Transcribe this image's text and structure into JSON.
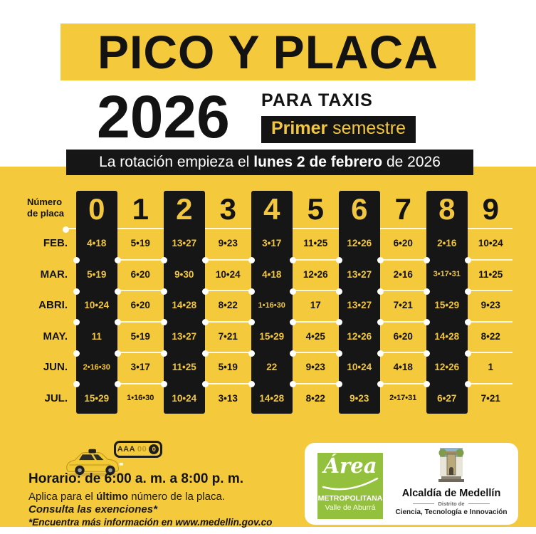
{
  "header": {
    "title": "PICO Y PLACA",
    "year": "2026",
    "subtitle": "PARA TAXIS",
    "semester_highlight": "Primer",
    "semester_rest": " semestre",
    "rotation_prefix": "La rotación empieza el ",
    "rotation_bold": "lunes 2 de febrero",
    "rotation_suffix": " de 2026"
  },
  "table": {
    "corner_label_line1": "Número",
    "corner_label_line2": "de placa",
    "columns": [
      "0",
      "1",
      "2",
      "3",
      "4",
      "5",
      "6",
      "7",
      "8",
      "9"
    ],
    "rows": [
      {
        "month": "FEB.",
        "values": [
          "4•18",
          "5•19",
          "13•27",
          "9•23",
          "3•17",
          "11•25",
          "12•26",
          "6•20",
          "2•16",
          "10•24"
        ]
      },
      {
        "month": "MAR.",
        "values": [
          "5•19",
          "6•20",
          "9•30",
          "10•24",
          "4•18",
          "12•26",
          "13•27",
          "2•16",
          "3•17•31",
          "11•25"
        ]
      },
      {
        "month": "ABRI.",
        "values": [
          "10•24",
          "6•20",
          "14•28",
          "8•22",
          "1•16•30",
          "17",
          "13•27",
          "7•21",
          "15•29",
          "9•23"
        ]
      },
      {
        "month": "MAY.",
        "values": [
          "11",
          "5•19",
          "13•27",
          "7•21",
          "15•29",
          "4•25",
          "12•26",
          "6•20",
          "14•28",
          "8•22"
        ]
      },
      {
        "month": "JUN.",
        "values": [
          "2•16•30",
          "3•17",
          "11•25",
          "5•19",
          "22",
          "9•23",
          "10•24",
          "4•18",
          "12•26",
          "1"
        ]
      },
      {
        "month": "JUL.",
        "values": [
          "15•29",
          "1•16•30",
          "10•24",
          "3•13",
          "14•28",
          "8•22",
          "9•23",
          "2•17•31",
          "6•27",
          "7•21"
        ]
      }
    ]
  },
  "footer": {
    "plate_letters": "AAA",
    "plate_faint": "00",
    "plate_circle_digit": "0",
    "schedule": "Horario: de 6:00 a. m. a 8:00 p. m.",
    "applies_prefix": "Aplica para el ",
    "applies_bold": "último",
    "applies_suffix": " número de la placa.",
    "exemptions": "Consulta las exenciones*",
    "more_info": "*Encuentra más información en www.medellin.gov.co"
  },
  "logos": {
    "area": {
      "script": "Área",
      "line1": "METROPOLITANA",
      "line2": "Valle de Aburrá"
    },
    "alcaldia": {
      "title": "Alcaldía de Medellín",
      "district": "Distrito de",
      "line2": "Ciencia, Tecnología e Innovación"
    }
  },
  "icons": {
    "taxi": "yellow-taxi-side-view",
    "plate": "license-plate-callout",
    "area_logo": "area-metropolitana-green-square",
    "alcaldia_crest": "alcaldia-medellin-tower-crest"
  },
  "colors": {
    "yellow": "#F5C93C",
    "black": "#161616",
    "white": "#FFFFFF",
    "green": "#94C13D",
    "accent_text_yellow": "#F2C63E"
  }
}
